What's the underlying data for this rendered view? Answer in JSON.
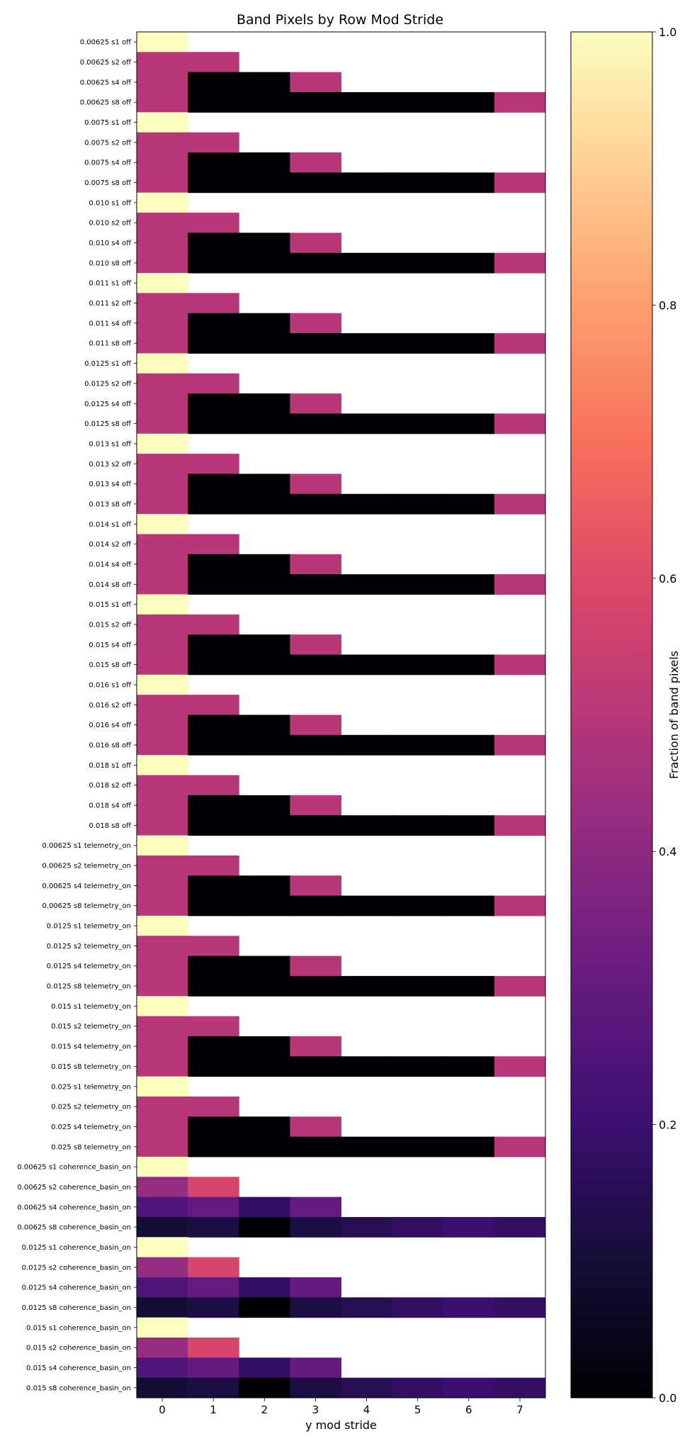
{
  "chart_data": {
    "type": "heatmap",
    "title": "Band Pixels by Row Mod Stride",
    "xlabel": "y mod stride",
    "colorbar_label": "Fraction of band pixels",
    "colormap": "magma",
    "x_categories": [
      "0",
      "1",
      "2",
      "3",
      "4",
      "5",
      "6",
      "7"
    ],
    "colorbar_ticks": [
      "0.0",
      "0.2",
      "0.4",
      "0.6",
      "0.8",
      "1.0"
    ],
    "vmin": 0,
    "vmax": 1,
    "stride_patterns": {
      "off": {
        "s1": [
          1.0
        ],
        "s2": [
          0.5,
          0.5
        ],
        "s4": [
          0.5,
          0.0,
          0.0,
          0.5
        ],
        "s8": [
          0.5,
          0.0,
          0.0,
          0.0,
          0.0,
          0.0,
          0.0,
          0.5
        ]
      },
      "telemetry_on": {
        "s1": [
          1.0
        ],
        "s2": [
          0.5,
          0.5
        ],
        "s4": [
          0.5,
          0.0,
          0.0,
          0.5
        ],
        "s8": [
          0.5,
          0.0,
          0.0,
          0.0,
          0.0,
          0.0,
          0.0,
          0.5
        ]
      },
      "coherence_basin_on": {
        "s1": [
          1.0
        ],
        "s2": [
          0.42,
          0.58
        ],
        "s4": [
          0.25,
          0.3,
          0.18,
          0.3
        ],
        "s8": [
          0.1,
          0.12,
          0.0,
          0.12,
          0.15,
          0.18,
          0.2,
          0.18
        ]
      }
    },
    "rows": [
      {
        "label": "0.00625 s1 off",
        "values": [
          1.0
        ]
      },
      {
        "label": "0.00625 s2 off",
        "values": [
          0.5,
          0.5
        ]
      },
      {
        "label": "0.00625 s4 off",
        "values": [
          0.5,
          0.0,
          0.0,
          0.5
        ]
      },
      {
        "label": "0.00625 s8 off",
        "values": [
          0.5,
          0.0,
          0.0,
          0.0,
          0.0,
          0.0,
          0.0,
          0.5
        ]
      },
      {
        "label": "0.0075 s1 off",
        "values": [
          1.0
        ]
      },
      {
        "label": "0.0075 s2 off",
        "values": [
          0.5,
          0.5
        ]
      },
      {
        "label": "0.0075 s4 off",
        "values": [
          0.5,
          0.0,
          0.0,
          0.5
        ]
      },
      {
        "label": "0.0075 s8 off",
        "values": [
          0.5,
          0.0,
          0.0,
          0.0,
          0.0,
          0.0,
          0.0,
          0.5
        ]
      },
      {
        "label": "0.010 s1 off",
        "values": [
          1.0
        ]
      },
      {
        "label": "0.010 s2 off",
        "values": [
          0.5,
          0.5
        ]
      },
      {
        "label": "0.010 s4 off",
        "values": [
          0.5,
          0.0,
          0.0,
          0.5
        ]
      },
      {
        "label": "0.010 s8 off",
        "values": [
          0.5,
          0.0,
          0.0,
          0.0,
          0.0,
          0.0,
          0.0,
          0.5
        ]
      },
      {
        "label": "0.011 s1 off",
        "values": [
          1.0
        ]
      },
      {
        "label": "0.011 s2 off",
        "values": [
          0.5,
          0.5
        ]
      },
      {
        "label": "0.011 s4 off",
        "values": [
          0.5,
          0.0,
          0.0,
          0.5
        ]
      },
      {
        "label": "0.011 s8 off",
        "values": [
          0.5,
          0.0,
          0.0,
          0.0,
          0.0,
          0.0,
          0.0,
          0.5
        ]
      },
      {
        "label": "0.0125 s1 off",
        "values": [
          1.0
        ]
      },
      {
        "label": "0.0125 s2 off",
        "values": [
          0.5,
          0.5
        ]
      },
      {
        "label": "0.0125 s4 off",
        "values": [
          0.5,
          0.0,
          0.0,
          0.5
        ]
      },
      {
        "label": "0.0125 s8 off",
        "values": [
          0.5,
          0.0,
          0.0,
          0.0,
          0.0,
          0.0,
          0.0,
          0.5
        ]
      },
      {
        "label": "0.013 s1 off",
        "values": [
          1.0
        ]
      },
      {
        "label": "0.013 s2 off",
        "values": [
          0.5,
          0.5
        ]
      },
      {
        "label": "0.013 s4 off",
        "values": [
          0.5,
          0.0,
          0.0,
          0.5
        ]
      },
      {
        "label": "0.013 s8 off",
        "values": [
          0.5,
          0.0,
          0.0,
          0.0,
          0.0,
          0.0,
          0.0,
          0.5
        ]
      },
      {
        "label": "0.014 s1 off",
        "values": [
          1.0
        ]
      },
      {
        "label": "0.014 s2 off",
        "values": [
          0.5,
          0.5
        ]
      },
      {
        "label": "0.014 s4 off",
        "values": [
          0.5,
          0.0,
          0.0,
          0.5
        ]
      },
      {
        "label": "0.014 s8 off",
        "values": [
          0.5,
          0.0,
          0.0,
          0.0,
          0.0,
          0.0,
          0.0,
          0.5
        ]
      },
      {
        "label": "0.015 s1 off",
        "values": [
          1.0
        ]
      },
      {
        "label": "0.015 s2 off",
        "values": [
          0.5,
          0.5
        ]
      },
      {
        "label": "0.015 s4 off",
        "values": [
          0.5,
          0.0,
          0.0,
          0.5
        ]
      },
      {
        "label": "0.015 s8 off",
        "values": [
          0.5,
          0.0,
          0.0,
          0.0,
          0.0,
          0.0,
          0.0,
          0.5
        ]
      },
      {
        "label": "0.016 s1 off",
        "values": [
          1.0
        ]
      },
      {
        "label": "0.016 s2 off",
        "values": [
          0.5,
          0.5
        ]
      },
      {
        "label": "0.016 s4 off",
        "values": [
          0.5,
          0.0,
          0.0,
          0.5
        ]
      },
      {
        "label": "0.016 s8 off",
        "values": [
          0.5,
          0.0,
          0.0,
          0.0,
          0.0,
          0.0,
          0.0,
          0.5
        ]
      },
      {
        "label": "0.018 s1 off",
        "values": [
          1.0
        ]
      },
      {
        "label": "0.018 s2 off",
        "values": [
          0.5,
          0.5
        ]
      },
      {
        "label": "0.018 s4 off",
        "values": [
          0.5,
          0.0,
          0.0,
          0.5
        ]
      },
      {
        "label": "0.018 s8 off",
        "values": [
          0.5,
          0.0,
          0.0,
          0.0,
          0.0,
          0.0,
          0.0,
          0.5
        ]
      },
      {
        "label": "0.00625 s1 telemetry_on",
        "values": [
          1.0
        ]
      },
      {
        "label": "0.00625 s2 telemetry_on",
        "values": [
          0.5,
          0.5
        ]
      },
      {
        "label": "0.00625 s4 telemetry_on",
        "values": [
          0.5,
          0.0,
          0.0,
          0.5
        ]
      },
      {
        "label": "0.00625 s8 telemetry_on",
        "values": [
          0.5,
          0.0,
          0.0,
          0.0,
          0.0,
          0.0,
          0.0,
          0.5
        ]
      },
      {
        "label": "0.0125 s1 telemetry_on",
        "values": [
          1.0
        ]
      },
      {
        "label": "0.0125 s2 telemetry_on",
        "values": [
          0.5,
          0.5
        ]
      },
      {
        "label": "0.0125 s4 telemetry_on",
        "values": [
          0.5,
          0.0,
          0.0,
          0.5
        ]
      },
      {
        "label": "0.0125 s8 telemetry_on",
        "values": [
          0.5,
          0.0,
          0.0,
          0.0,
          0.0,
          0.0,
          0.0,
          0.5
        ]
      },
      {
        "label": "0.015 s1 telemetry_on",
        "values": [
          1.0
        ]
      },
      {
        "label": "0.015 s2 telemetry_on",
        "values": [
          0.5,
          0.5
        ]
      },
      {
        "label": "0.015 s4 telemetry_on",
        "values": [
          0.5,
          0.0,
          0.0,
          0.5
        ]
      },
      {
        "label": "0.015 s8 telemetry_on",
        "values": [
          0.5,
          0.0,
          0.0,
          0.0,
          0.0,
          0.0,
          0.0,
          0.5
        ]
      },
      {
        "label": "0.025 s1 telemetry_on",
        "values": [
          1.0
        ]
      },
      {
        "label": "0.025 s2 telemetry_on",
        "values": [
          0.5,
          0.5
        ]
      },
      {
        "label": "0.025 s4 telemetry_on",
        "values": [
          0.5,
          0.0,
          0.0,
          0.5
        ]
      },
      {
        "label": "0.025 s8 telemetry_on",
        "values": [
          0.5,
          0.0,
          0.0,
          0.0,
          0.0,
          0.0,
          0.0,
          0.5
        ]
      },
      {
        "label": "0.00625 s1 coherence_basin_on",
        "values": [
          1.0
        ]
      },
      {
        "label": "0.00625 s2 coherence_basin_on",
        "values": [
          0.42,
          0.58
        ]
      },
      {
        "label": "0.00625 s4 coherence_basin_on",
        "values": [
          0.25,
          0.3,
          0.18,
          0.3
        ]
      },
      {
        "label": "0.00625 s8 coherence_basin_on",
        "values": [
          0.1,
          0.12,
          0.0,
          0.12,
          0.15,
          0.18,
          0.2,
          0.18
        ]
      },
      {
        "label": "0.0125 s1 coherence_basin_on",
        "values": [
          1.0
        ]
      },
      {
        "label": "0.0125 s2 coherence_basin_on",
        "values": [
          0.42,
          0.58
        ]
      },
      {
        "label": "0.0125 s4 coherence_basin_on",
        "values": [
          0.25,
          0.3,
          0.18,
          0.3
        ]
      },
      {
        "label": "0.0125 s8 coherence_basin_on",
        "values": [
          0.1,
          0.12,
          0.0,
          0.12,
          0.15,
          0.18,
          0.2,
          0.18
        ]
      },
      {
        "label": "0.015 s1 coherence_basin_on",
        "values": [
          1.0
        ]
      },
      {
        "label": "0.015 s2 coherence_basin_on",
        "values": [
          0.42,
          0.58
        ]
      },
      {
        "label": "0.015 s4 coherence_basin_on",
        "values": [
          0.25,
          0.3,
          0.18,
          0.3
        ]
      },
      {
        "label": "0.015 s8 coherence_basin_on",
        "values": [
          0.1,
          0.12,
          0.0,
          0.12,
          0.15,
          0.18,
          0.2,
          0.18
        ]
      }
    ]
  }
}
